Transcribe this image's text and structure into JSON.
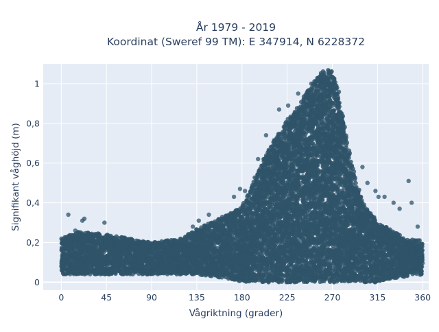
{
  "chart_data": {
    "type": "scatter",
    "title_lines": [
      "År 1979 - 2019",
      "Koordinat (Sweref 99 TM): E 347914, N 6228372"
    ],
    "xlabel": "Vågriktning (grader)",
    "ylabel": "Signifikant våghöjd (m)",
    "xlim": [
      -18,
      366
    ],
    "ylim": [
      -0.04,
      1.1
    ],
    "x_ticks": [
      0,
      45,
      90,
      135,
      180,
      225,
      270,
      315,
      360
    ],
    "y_ticks": [
      0,
      0.2,
      0.4,
      0.6,
      0.8,
      1
    ],
    "y_tick_labels": [
      "0",
      "0,2",
      "0,4",
      "0,6",
      "0,8",
      "1"
    ],
    "grid": true,
    "plot_background": "#e5ecf6",
    "marker_color": "#2f5469",
    "envelope": {
      "direction_deg": [
        0,
        20,
        45,
        90,
        120,
        135,
        150,
        165,
        180,
        195,
        210,
        225,
        240,
        250,
        260,
        265,
        270,
        275,
        280,
        290,
        300,
        315,
        330,
        345,
        360
      ],
      "lower_height_m": [
        0.04,
        0.04,
        0.04,
        0.04,
        0.04,
        0.04,
        0.03,
        0.02,
        0.0,
        0.0,
        0.0,
        0.0,
        0.0,
        0.0,
        0.0,
        0.0,
        0.0,
        0.0,
        0.0,
        0.0,
        0.0,
        0.0,
        0.02,
        0.03,
        0.04
      ],
      "upper_height_m": [
        0.22,
        0.26,
        0.24,
        0.2,
        0.22,
        0.27,
        0.3,
        0.34,
        0.38,
        0.55,
        0.7,
        0.82,
        0.92,
        1.0,
        1.06,
        1.07,
        1.06,
        1.0,
        0.84,
        0.58,
        0.4,
        0.3,
        0.26,
        0.22,
        0.21
      ]
    },
    "outliers": [
      {
        "x": 7,
        "y": 0.34
      },
      {
        "x": 21,
        "y": 0.31
      },
      {
        "x": 23,
        "y": 0.32
      },
      {
        "x": 43,
        "y": 0.3
      },
      {
        "x": 14,
        "y": 0.26
      },
      {
        "x": 131,
        "y": 0.28
      },
      {
        "x": 137,
        "y": 0.31
      },
      {
        "x": 147,
        "y": 0.34
      },
      {
        "x": 172,
        "y": 0.43
      },
      {
        "x": 178,
        "y": 0.47
      },
      {
        "x": 183,
        "y": 0.46
      },
      {
        "x": 196,
        "y": 0.62
      },
      {
        "x": 204,
        "y": 0.74
      },
      {
        "x": 217,
        "y": 0.87
      },
      {
        "x": 226,
        "y": 0.89
      },
      {
        "x": 236,
        "y": 0.95
      },
      {
        "x": 249,
        "y": 1.0
      },
      {
        "x": 300,
        "y": 0.58
      },
      {
        "x": 305,
        "y": 0.5
      },
      {
        "x": 313,
        "y": 0.46
      },
      {
        "x": 316,
        "y": 0.43
      },
      {
        "x": 322,
        "y": 0.43
      },
      {
        "x": 331,
        "y": 0.4
      },
      {
        "x": 337,
        "y": 0.37
      },
      {
        "x": 346,
        "y": 0.51
      },
      {
        "x": 349,
        "y": 0.4
      },
      {
        "x": 355,
        "y": 0.28
      }
    ]
  }
}
